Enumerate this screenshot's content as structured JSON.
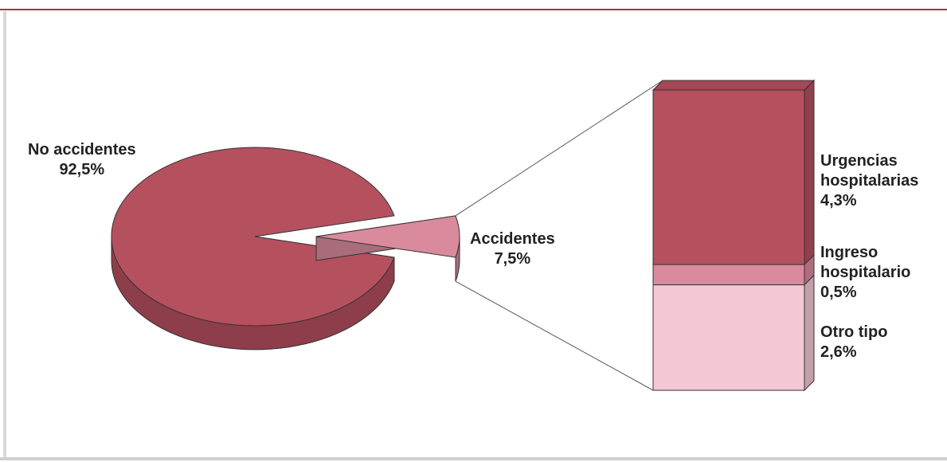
{
  "chart_data": {
    "type": "pie",
    "categories": [
      "No accidentes",
      "Accidentes"
    ],
    "values": [
      92.5,
      7.5
    ],
    "value_labels": [
      "92,5%",
      "7,5%"
    ],
    "colors": [
      "#b5505f",
      "#d98a9c"
    ],
    "breakdown": {
      "categories": [
        "Urgencias hospitalarias",
        "Ingreso hospitalario",
        "Otro tipo"
      ],
      "values": [
        4.3,
        0.5,
        2.6
      ],
      "value_labels": [
        "4,3%",
        "0,5%",
        "2,6%"
      ],
      "colors": [
        "#b5505f",
        "#d98a9c",
        "#f3c8d4"
      ]
    }
  }
}
